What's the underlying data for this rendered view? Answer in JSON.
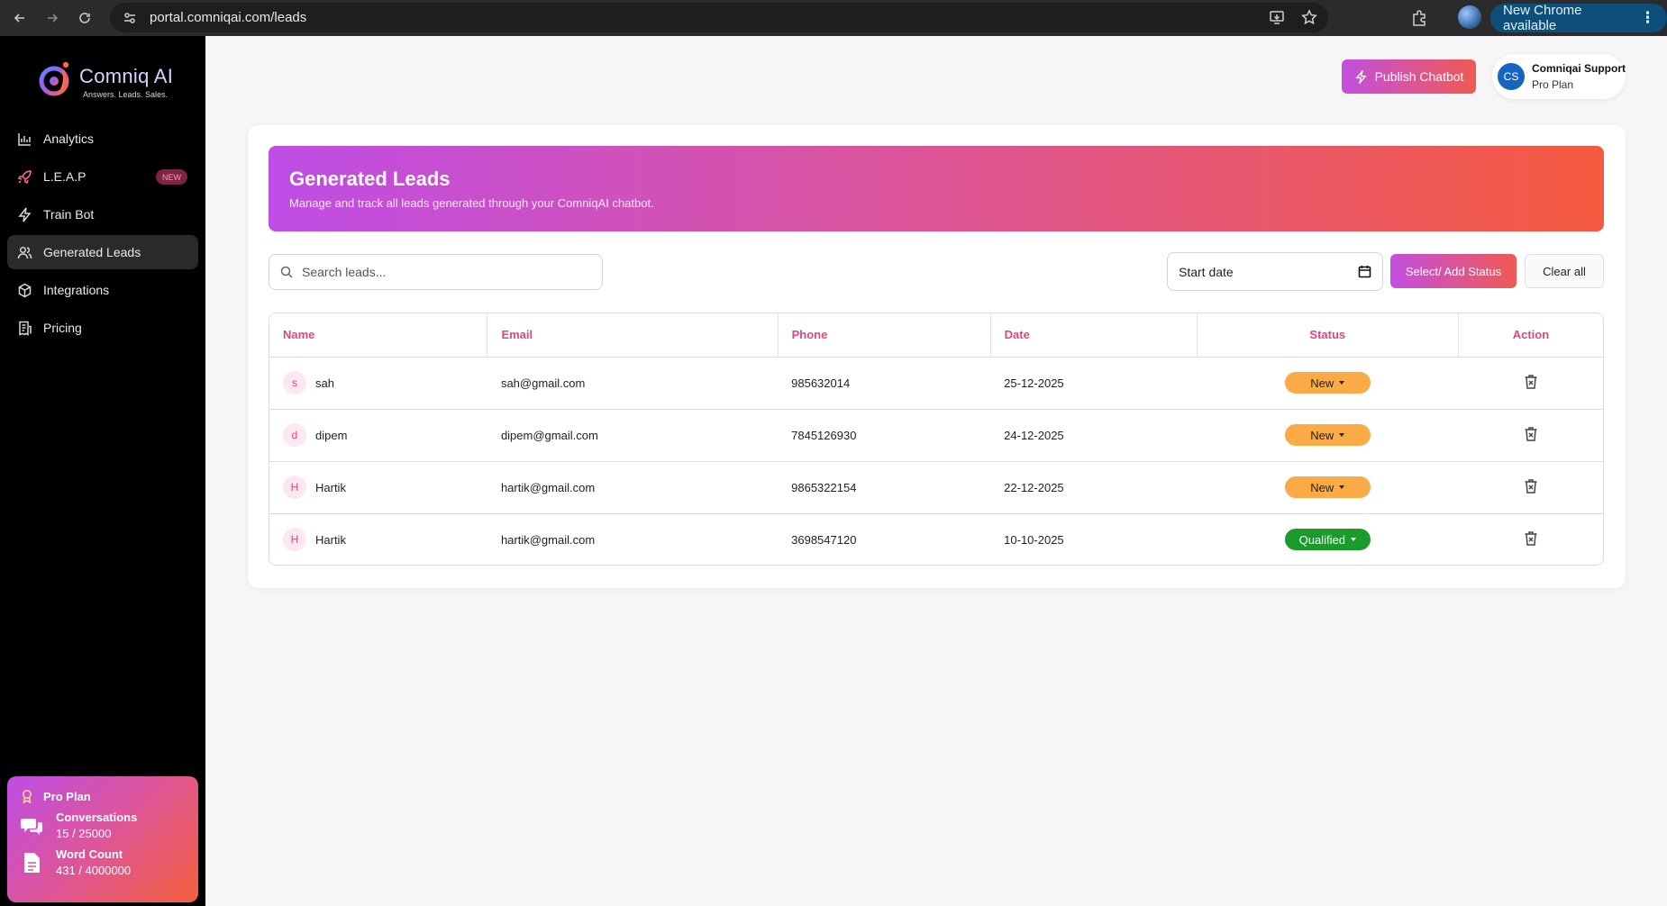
{
  "browser": {
    "url": "portal.comniqai.com/leads",
    "update_label": "New Chrome available"
  },
  "sidebar": {
    "brand": "Comniq AI",
    "tagline": "Answers. Leads. Sales.",
    "items": [
      {
        "label": "Analytics",
        "icon": "bar-chart-icon"
      },
      {
        "label": "L.E.A.P",
        "icon": "rocket-icon",
        "badge": "NEW"
      },
      {
        "label": "Train Bot",
        "icon": "lightning-icon"
      },
      {
        "label": "Generated Leads",
        "icon": "users-icon",
        "active": true
      },
      {
        "label": "Integrations",
        "icon": "cube-icon"
      },
      {
        "label": "Pricing",
        "icon": "receipt-icon"
      }
    ],
    "plan": {
      "title": "Pro Plan",
      "conversations_label": "Conversations",
      "conversations_value": "15 / 25000",
      "words_label": "Word Count",
      "words_value": "431 / 4000000"
    }
  },
  "header": {
    "publish_label": "Publish Chatbot",
    "user": {
      "initials": "CS",
      "name": "Comniqai Support",
      "plan": "Pro Plan"
    }
  },
  "banner": {
    "title": "Generated Leads",
    "subtitle": "Manage and track all leads generated through your ComniqAI chatbot."
  },
  "filters": {
    "search_placeholder": "Search leads...",
    "start_date_label": "Start date",
    "status_button": "Select/ Add Status",
    "clear_button": "Clear all"
  },
  "table": {
    "columns": [
      "Name",
      "Email",
      "Phone",
      "Date",
      "Status",
      "Action"
    ],
    "rows": [
      {
        "initial": "s",
        "name": "sah",
        "email": "sah@gmail.com",
        "phone": "985632014",
        "date": "25-12-2025",
        "status": "New"
      },
      {
        "initial": "d",
        "name": "dipem",
        "email": "dipem@gmail.com",
        "phone": "7845126930",
        "date": "24-12-2025",
        "status": "New"
      },
      {
        "initial": "H",
        "name": "Hartik",
        "email": "hartik@gmail.com",
        "phone": "9865322154",
        "date": "22-12-2025",
        "status": "New"
      },
      {
        "initial": "H",
        "name": "Hartik",
        "email": "hartik@gmail.com",
        "phone": "3698547120",
        "date": "10-10-2025",
        "status": "Qualified"
      }
    ]
  },
  "colors": {
    "accent_start": "#c24fe0",
    "accent_end": "#ef5a52",
    "status_new": "#fbab45",
    "status_qualified": "#1a9b2c"
  }
}
